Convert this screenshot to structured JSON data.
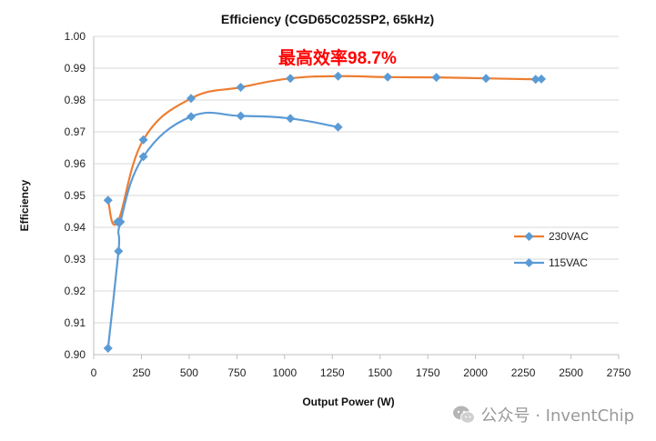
{
  "chart_data": {
    "type": "line",
    "title": "Efficiency (CGD65C025SP2, 65kHz)",
    "xlabel": "Output Power (W)",
    "ylabel": "Efficiency",
    "xlim": [
      0,
      2750
    ],
    "ylim": [
      0.9,
      1.0
    ],
    "x_ticks": [
      "0",
      "250",
      "500",
      "750",
      "1000",
      "1250",
      "1500",
      "1750",
      "2000",
      "2250",
      "2500",
      "2750"
    ],
    "y_ticks": [
      "0.90",
      "0.91",
      "0.92",
      "0.93",
      "0.94",
      "0.95",
      "0.96",
      "0.97",
      "0.98",
      "0.99",
      "1.00"
    ],
    "grid": "horizontal",
    "legend_position": "right",
    "annotation": "最高效率98.7%",
    "series": [
      {
        "name": "230VAC",
        "color": "#ED7D31",
        "marker_color": "#5B9BD5",
        "x": [
          75,
          125,
          260,
          510,
          770,
          1030,
          1280,
          1540,
          1795,
          2055,
          2315,
          2345
        ],
        "y": [
          0.9485,
          0.9417,
          0.9675,
          0.9805,
          0.984,
          0.9868,
          0.9875,
          0.9872,
          0.9871,
          0.9868,
          0.9865,
          0.9866
        ]
      },
      {
        "name": "115VAC",
        "color": "#5B9BD5",
        "marker_color": "#5B9BD5",
        "x": [
          75,
          130,
          140,
          260,
          510,
          770,
          1030,
          1280
        ],
        "y": [
          0.902,
          0.9325,
          0.9417,
          0.9622,
          0.9748,
          0.975,
          0.9742,
          0.9715
        ]
      }
    ]
  },
  "watermark": {
    "icon": "wechat-icon",
    "text": "公众号 · InventChip"
  }
}
